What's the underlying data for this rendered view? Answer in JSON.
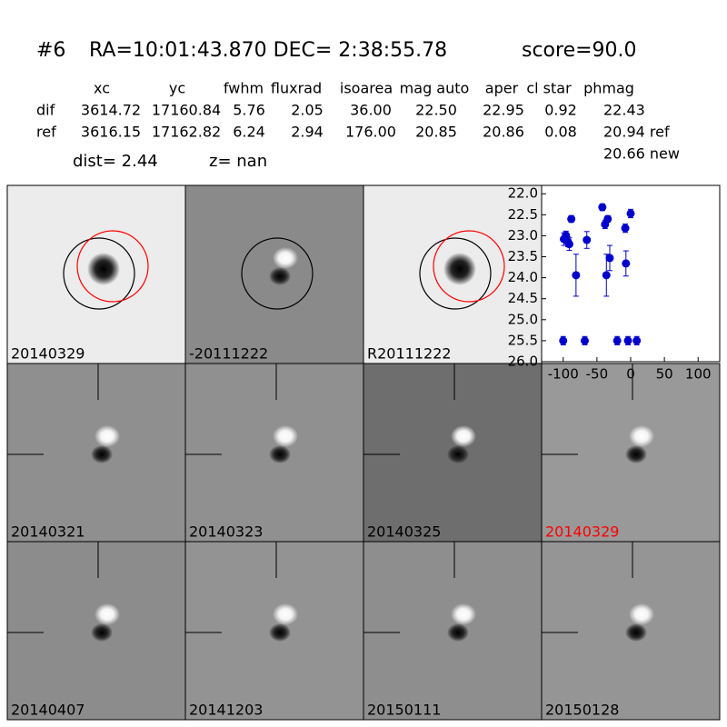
{
  "header": {
    "id": "#6",
    "coords": "RA=10:01:43.870 DEC= 2:38:55.78",
    "score": "score=90.0"
  },
  "table": {
    "columns": [
      "xc",
      "yc",
      "fwhm",
      "fluxrad",
      "isoarea",
      "mag auto",
      "aper",
      "cl star",
      "phmag"
    ],
    "rows": [
      [
        "dif",
        "3614.72",
        "17160.84",
        "5.76",
        "2.05",
        "36.00",
        "22.50",
        "22.95",
        "0.92",
        "22.43"
      ],
      [
        "ref",
        "3616.15",
        "17162.82",
        "6.24",
        "2.94",
        "176.00",
        "20.85",
        "20.86",
        "0.08",
        "20.94 ref"
      ]
    ],
    "extra": "20.66 new"
  },
  "dist": "dist=  2.44",
  "z": "z=   nan",
  "stamps": [
    {
      "label": "20140329",
      "label_color": "#000000"
    },
    {
      "label": "-20111222",
      "label_color": "#000000"
    },
    {
      "label": "R20111222",
      "label_color": "#000000"
    },
    {
      "label": "20140321",
      "label_color": "#000000"
    },
    {
      "label": "20140323",
      "label_color": "#000000"
    },
    {
      "label": "20140325",
      "label_color": "#000000"
    },
    {
      "label": "20140329",
      "label_color": "#ff0000"
    },
    {
      "label": "20140407",
      "label_color": "#000000"
    },
    {
      "label": "20141203",
      "label_color": "#000000"
    },
    {
      "label": "20150111",
      "label_color": "#000000"
    },
    {
      "label": "20150128",
      "label_color": "#000000"
    }
  ],
  "chart_data": {
    "type": "scatter",
    "color": "#0000cc",
    "y_inverted": true,
    "x": [
      -99,
      -96,
      -93,
      -91,
      -88,
      -81,
      -65,
      -42,
      -38,
      -34,
      -36,
      -31,
      -8,
      -7,
      0,
      -100,
      -68,
      -20,
      -4,
      9
    ],
    "values": [
      23.08,
      22.99,
      23.14,
      23.2,
      22.6,
      23.94,
      23.1,
      22.32,
      22.73,
      22.6,
      23.94,
      23.53,
      22.82,
      23.66,
      22.47,
      25.5,
      25.5,
      25.5,
      25.5,
      25.5
    ],
    "errors": [
      0.15,
      0.1,
      0.12,
      0.15,
      0.08,
      0.5,
      0.2,
      0.08,
      0.1,
      0.08,
      0.5,
      0.3,
      0.1,
      0.3,
      0.1,
      0.1,
      0.1,
      0.1,
      0.1,
      0.1
    ],
    "xlim": [
      -132,
      132
    ],
    "ylim": [
      21.8,
      26
    ],
    "xticks": [
      -100,
      -50,
      0,
      50,
      100
    ],
    "yticks": [
      {
        "value": 22,
        "label": "22.0"
      },
      {
        "value": 22.5,
        "label": "22.5"
      },
      {
        "value": 23,
        "label": "23.0"
      },
      {
        "value": 23.5,
        "label": "23.5"
      },
      {
        "value": 24,
        "label": "24.0"
      },
      {
        "value": 24.5,
        "label": "24.5"
      },
      {
        "value": 25,
        "label": "25.0"
      },
      {
        "value": 25.5,
        "label": "25.5"
      },
      {
        "value": 26,
        "label": "26.0"
      }
    ]
  }
}
